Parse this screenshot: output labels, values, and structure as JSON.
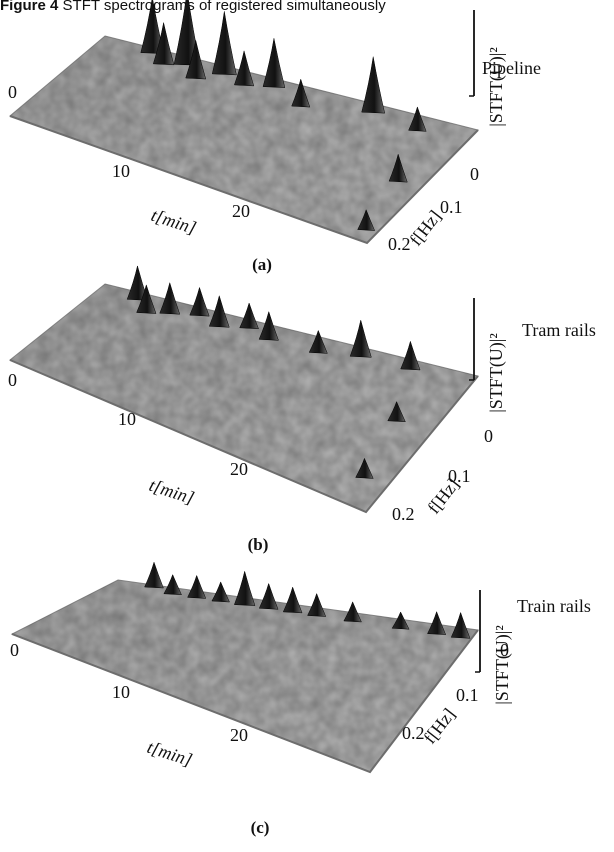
{
  "caption": {
    "prefix": "Figure 4",
    "text": "STFT spectrograms of registered simultaneously"
  },
  "chart_data": [
    {
      "type": "surface3d",
      "panel_label": "(a)",
      "series_name": "Pipeline",
      "zlabel": "|STFT(U)|²",
      "xlabel": "t[min]",
      "ylabel": "f[Hz]",
      "x_ticks": [
        "0",
        "10",
        "20"
      ],
      "y_ticks": [
        "0",
        "0.1",
        "0.2"
      ],
      "xlim": [
        0,
        30
      ],
      "ylim": [
        0,
        0.2
      ],
      "peaks": [
        {
          "t": 4,
          "f": 0.005,
          "z": 0.75
        },
        {
          "t": 5.5,
          "f": 0.02,
          "z": 0.55
        },
        {
          "t": 7,
          "f": 0.01,
          "z": 1.0
        },
        {
          "t": 8.5,
          "f": 0.03,
          "z": 0.5
        },
        {
          "t": 10,
          "f": 0.01,
          "z": 0.85
        },
        {
          "t": 12,
          "f": 0.02,
          "z": 0.45
        },
        {
          "t": 14,
          "f": 0.01,
          "z": 0.65
        },
        {
          "t": 17,
          "f": 0.03,
          "z": 0.35
        },
        {
          "t": 22,
          "f": 0.01,
          "z": 0.75
        },
        {
          "t": 26,
          "f": 0.02,
          "z": 0.3
        },
        {
          "t": 28,
          "f": 0.1,
          "z": 0.35
        },
        {
          "t": 29,
          "f": 0.18,
          "z": 0.25
        }
      ]
    },
    {
      "type": "surface3d",
      "panel_label": "(b)",
      "series_name": "Tram rails",
      "zlabel": "|STFT(U)|²",
      "xlabel": "t[min]",
      "ylabel": "f[Hz]",
      "x_ticks": [
        "0",
        "10",
        "20"
      ],
      "y_ticks": [
        "0",
        "0.1",
        "0.2"
      ],
      "xlim": [
        0,
        30
      ],
      "ylim": [
        0,
        0.2
      ],
      "peaks": [
        {
          "t": 3,
          "f": 0.01,
          "z": 0.55
        },
        {
          "t": 4.5,
          "f": 0.03,
          "z": 0.45
        },
        {
          "t": 6,
          "f": 0.02,
          "z": 0.5
        },
        {
          "t": 8,
          "f": 0.01,
          "z": 0.45
        },
        {
          "t": 10,
          "f": 0.02,
          "z": 0.5
        },
        {
          "t": 12,
          "f": 0.01,
          "z": 0.4
        },
        {
          "t": 14,
          "f": 0.02,
          "z": 0.45
        },
        {
          "t": 18,
          "f": 0.02,
          "z": 0.35
        },
        {
          "t": 21,
          "f": 0.01,
          "z": 0.6
        },
        {
          "t": 25,
          "f": 0.01,
          "z": 0.45
        },
        {
          "t": 27,
          "f": 0.08,
          "z": 0.3
        },
        {
          "t": 28,
          "f": 0.16,
          "z": 0.3
        }
      ]
    },
    {
      "type": "surface3d",
      "panel_label": "(c)",
      "series_name": "Train rails",
      "zlabel": "|STFT(U)|²",
      "xlabel": "t[min]",
      "ylabel": "f[Hz]",
      "x_ticks": [
        "0",
        "10",
        "20"
      ],
      "y_ticks": [
        "0",
        "0.1",
        "0.2"
      ],
      "xlim": [
        0,
        30
      ],
      "ylim": [
        0,
        0.2
      ],
      "peaks": [
        {
          "t": 3,
          "f": 0.0,
          "z": 0.4
        },
        {
          "t": 5,
          "f": 0.01,
          "z": 0.3
        },
        {
          "t": 7,
          "f": 0.01,
          "z": 0.35
        },
        {
          "t": 9,
          "f": 0.01,
          "z": 0.3
        },
        {
          "t": 11,
          "f": 0.01,
          "z": 0.55
        },
        {
          "t": 13,
          "f": 0.01,
          "z": 0.4
        },
        {
          "t": 15,
          "f": 0.01,
          "z": 0.4
        },
        {
          "t": 17,
          "f": 0.01,
          "z": 0.35
        },
        {
          "t": 20,
          "f": 0.01,
          "z": 0.3
        },
        {
          "t": 24,
          "f": 0.01,
          "z": 0.25
        },
        {
          "t": 27,
          "f": 0.01,
          "z": 0.35
        },
        {
          "t": 29,
          "f": 0.01,
          "z": 0.4
        }
      ]
    }
  ]
}
